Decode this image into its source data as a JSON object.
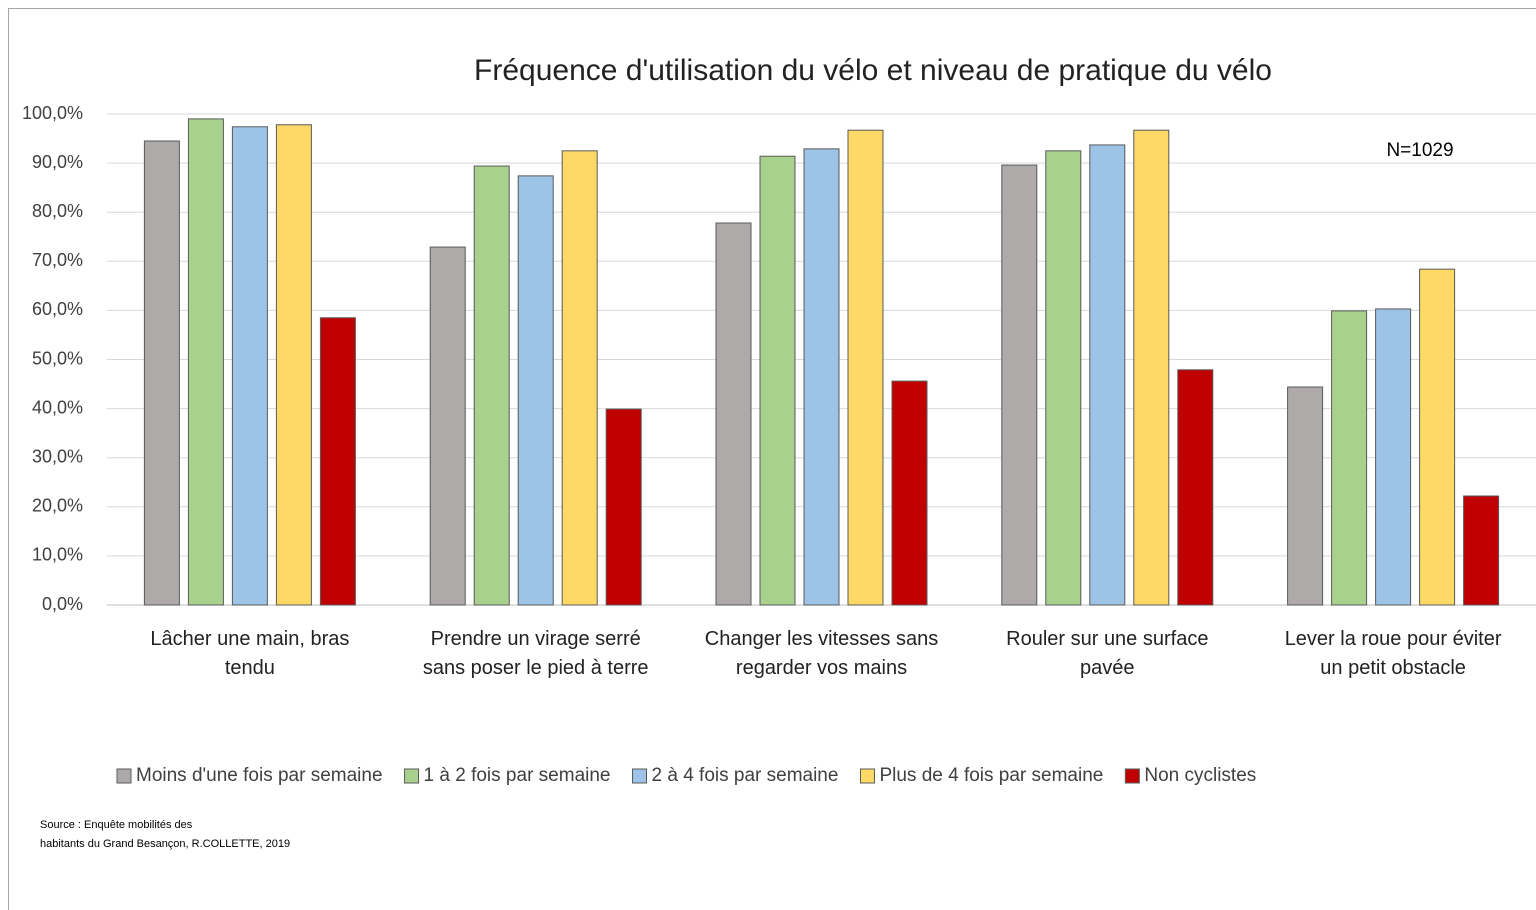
{
  "chart_data": {
    "type": "bar",
    "title": "Fréquence d'utilisation du vélo et niveau de pratique du vélo",
    "annotation": "N=1029",
    "source": [
      "Source : Enquête mobilités des",
      "habitants du Grand Besançon, R.COLLETTE, 2019"
    ],
    "categories": [
      "Lâcher une main, bras\ntendu",
      "Prendre un virage serré\nsans poser le pied à terre",
      "Changer les vitesses sans\nregarder vos mains",
      "Rouler sur une surface\npavée",
      "Lever la roue pour éviter\nun petit obstacle"
    ],
    "series": [
      {
        "name": "Moins d'une fois par semaine",
        "color": "#aeaaaa",
        "values": [
          94.5,
          72.9,
          77.8,
          89.6,
          44.4
        ]
      },
      {
        "name": "1 à 2 fois par semaine",
        "color": "#a9d18e",
        "values": [
          99.0,
          89.4,
          91.4,
          92.5,
          59.9
        ]
      },
      {
        "name": "2 à 4 fois par semaine",
        "color": "#9dc3e6",
        "values": [
          97.4,
          87.4,
          92.9,
          93.7,
          60.3
        ]
      },
      {
        "name": "Plus de 4 fois par semaine",
        "color": "#ffd966",
        "values": [
          97.8,
          92.5,
          96.7,
          96.7,
          68.4
        ]
      },
      {
        "name": "Non cyclistes",
        "color": "#c00000",
        "values": [
          58.5,
          39.9,
          45.6,
          47.9,
          22.2
        ]
      }
    ],
    "ylim": [
      0,
      100
    ],
    "yticks": [
      {
        "value": 0,
        "label": "0,0%"
      },
      {
        "value": 10,
        "label": "10,0%"
      },
      {
        "value": 20,
        "label": "20,0%"
      },
      {
        "value": 30,
        "label": "30,0%"
      },
      {
        "value": 40,
        "label": "40,0%"
      },
      {
        "value": 50,
        "label": "50,0%"
      },
      {
        "value": 60,
        "label": "60,0%"
      },
      {
        "value": 70,
        "label": "70,0%"
      },
      {
        "value": 80,
        "label": "80,0%"
      },
      {
        "value": 90,
        "label": "90,0%"
      },
      {
        "value": 100,
        "label": "100,0%"
      }
    ],
    "grid": true,
    "legend": "bottom"
  }
}
